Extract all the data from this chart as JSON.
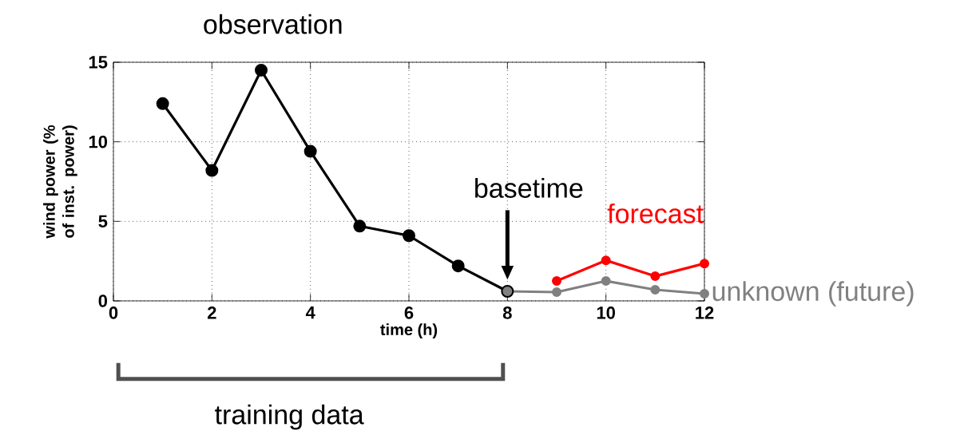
{
  "chart_data": {
    "type": "line",
    "title": "observation",
    "xlabel": "time (h)",
    "ylabel": "wind power (% of inst. power)",
    "x": [
      1,
      2,
      3,
      4,
      5,
      6,
      7,
      8
    ],
    "series": [
      {
        "color": "#000000",
        "values": [
          12.4,
          8.2,
          14.5,
          9.4,
          4.7,
          4.1,
          2.2,
          0.6
        ]
      },
      {
        "name": "forecast",
        "color": "#ff0000",
        "x": [
          9,
          10,
          11,
          12
        ],
        "values": [
          1.25,
          2.55,
          1.55,
          2.35
        ]
      },
      {
        "name": "unknown (future)",
        "color": "#808080",
        "x": [
          8,
          9,
          10,
          11,
          12
        ],
        "values": [
          0.6,
          0.55,
          1.25,
          0.7,
          0.45
        ]
      }
    ],
    "annotations": [
      "basetime",
      "training data"
    ],
    "xlim": [
      0,
      12
    ],
    "ylim": [
      0,
      15
    ],
    "xticks": [
      0,
      2,
      4,
      6,
      8,
      10,
      12
    ],
    "yticks": [
      0,
      5,
      10,
      15
    ],
    "grid": true,
    "legend": false,
    "marker": "circle",
    "line_style": "solid"
  }
}
